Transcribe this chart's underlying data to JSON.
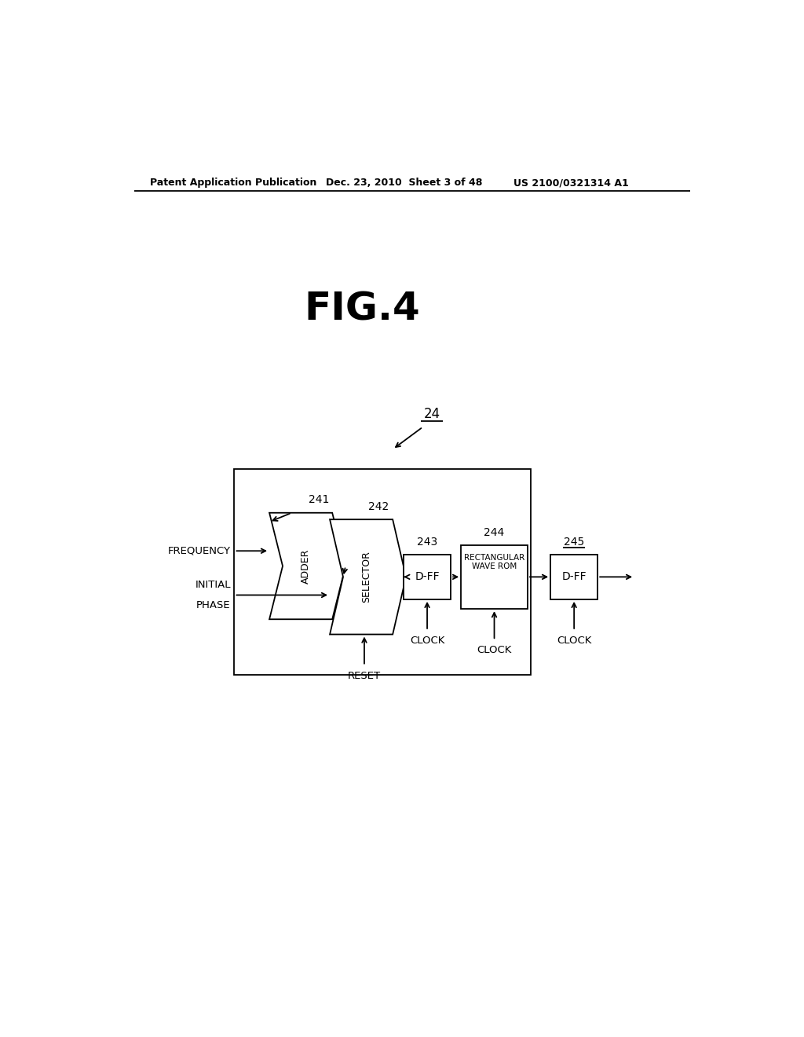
{
  "bg_color": "#ffffff",
  "header_left": "Patent Application Publication",
  "header_mid": "Dec. 23, 2010  Sheet 3 of 48",
  "header_right": "US 2100/0321314 A1",
  "fig_title": "FIG.4",
  "module_label": "24",
  "label_241": "241",
  "text_adder": "ADDER",
  "label_242": "242",
  "text_selector": "SELECTOR",
  "label_243": "243",
  "text_dff1": "D-FF",
  "label_244": "244",
  "text_rom_line1": "RECTANGULAR",
  "text_rom_line2": "WAVE ROM",
  "label_245": "245",
  "text_dff2": "D-FF",
  "text_frequency": "FREQUENCY",
  "text_initial": "INITIAL",
  "text_phase": "PHASE",
  "text_reset": "RESET",
  "text_clock": "CLOCK",
  "lc": "#000000",
  "tc": "#000000",
  "lw": 1.3,
  "fig_title_size": 36,
  "header_size": 9,
  "label_size": 10,
  "text_size": 9.5
}
